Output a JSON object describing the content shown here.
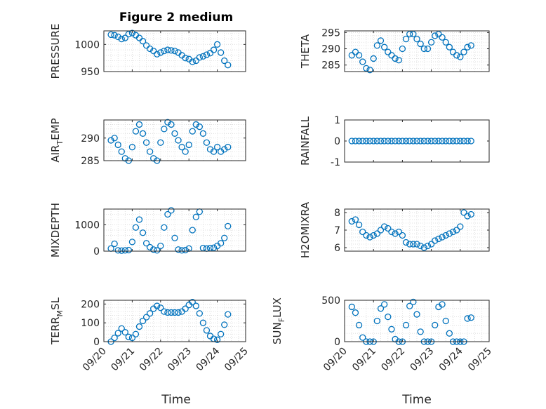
{
  "figure_title": "Figure 2 medium",
  "colors": {
    "marker": "#0072BD",
    "axis": "#262626",
    "grid": "#d9d9d9"
  },
  "chart_data": [
    {
      "type": "scatter",
      "ylabel": "PRESSURE",
      "ylabel_sub": "",
      "ylabel_after": "",
      "xlim": [
        "09/20",
        "09/25"
      ],
      "ylim": [
        950,
        1025
      ],
      "yticks": [
        950,
        1000
      ],
      "yticklabels": [
        "950",
        "1000"
      ],
      "x": [
        "09/20 06:00",
        "09/20 09:00",
        "09/20 12:00",
        "09/20 15:00",
        "09/20 18:00",
        "09/20 21:00",
        "09/21 00:00",
        "09/21 03:00",
        "09/21 06:00",
        "09/21 09:00",
        "09/21 12:00",
        "09/21 15:00",
        "09/21 18:00",
        "09/21 21:00",
        "09/22 00:00",
        "09/22 03:00",
        "09/22 06:00",
        "09/22 09:00",
        "09/22 12:00",
        "09/22 15:00",
        "09/22 18:00",
        "09/22 21:00",
        "09/23 00:00",
        "09/23 03:00",
        "09/23 06:00",
        "09/23 09:00",
        "09/23 12:00",
        "09/23 15:00",
        "09/23 18:00",
        "09/23 21:00",
        "09/24 00:00",
        "09/24 03:00",
        "09/24 06:00",
        "09/24 09:00"
      ],
      "y": [
        1018,
        1017,
        1014,
        1010,
        1012,
        1019,
        1021,
        1017,
        1012,
        1006,
        998,
        992,
        988,
        982,
        985,
        988,
        990,
        989,
        988,
        985,
        980,
        975,
        973,
        968,
        970,
        976,
        978,
        981,
        984,
        990,
        1000,
        985,
        970,
        962
      ],
      "grid": true
    },
    {
      "type": "scatter",
      "ylabel": "THETA",
      "ylabel_sub": "",
      "ylabel_after": "",
      "xlim": [
        "09/20",
        "09/25"
      ],
      "ylim": [
        283,
        295.5
      ],
      "yticks": [
        285,
        290,
        295
      ],
      "yticklabels": [
        "285",
        "290",
        "295"
      ],
      "x": [
        "09/20 06:00",
        "09/20 09:00",
        "09/20 12:00",
        "09/20 15:00",
        "09/20 18:00",
        "09/20 21:00",
        "09/21 00:00",
        "09/21 03:00",
        "09/21 06:00",
        "09/21 09:00",
        "09/21 12:00",
        "09/21 15:00",
        "09/21 18:00",
        "09/21 21:00",
        "09/22 00:00",
        "09/22 03:00",
        "09/22 06:00",
        "09/22 09:00",
        "09/22 12:00",
        "09/22 15:00",
        "09/22 18:00",
        "09/22 21:00",
        "09/23 00:00",
        "09/23 03:00",
        "09/23 06:00",
        "09/23 09:00",
        "09/23 12:00",
        "09/23 15:00",
        "09/23 18:00",
        "09/23 21:00",
        "09/24 00:00",
        "09/24 03:00",
        "09/24 06:00",
        "09/24 09:00"
      ],
      "y": [
        288,
        289,
        288,
        286,
        284,
        283.5,
        287,
        291,
        292.5,
        290.5,
        289,
        288,
        287,
        286.5,
        290,
        293,
        294.5,
        294.5,
        293,
        291.5,
        290,
        290,
        292,
        294,
        294.5,
        293.5,
        292,
        290.5,
        289,
        288,
        287.5,
        289,
        290.5,
        291
      ],
      "grid": true
    },
    {
      "type": "scatter",
      "ylabel": "AIR",
      "ylabel_sub": "T",
      "ylabel_after": "EMP",
      "xlim": [
        "09/20",
        "09/25"
      ],
      "ylim": [
        285,
        294
      ],
      "yticks": [
        285,
        290
      ],
      "yticklabels": [
        "285",
        "290"
      ],
      "x": [
        "09/20 06:00",
        "09/20 09:00",
        "09/20 12:00",
        "09/20 15:00",
        "09/20 18:00",
        "09/20 21:00",
        "09/21 00:00",
        "09/21 03:00",
        "09/21 06:00",
        "09/21 09:00",
        "09/21 12:00",
        "09/21 15:00",
        "09/21 18:00",
        "09/21 21:00",
        "09/22 00:00",
        "09/22 03:00",
        "09/22 06:00",
        "09/22 09:00",
        "09/22 12:00",
        "09/22 15:00",
        "09/22 18:00",
        "09/22 21:00",
        "09/23 00:00",
        "09/23 03:00",
        "09/23 06:00",
        "09/23 09:00",
        "09/23 12:00",
        "09/23 15:00",
        "09/23 18:00",
        "09/23 21:00",
        "09/24 00:00",
        "09/24 03:00",
        "09/24 06:00",
        "09/24 09:00"
      ],
      "y": [
        289.5,
        290,
        288.5,
        287,
        285.5,
        285,
        288,
        291.5,
        293,
        291,
        289,
        287,
        285.5,
        285,
        289,
        292,
        293.5,
        293,
        291,
        289.5,
        288,
        287,
        288.5,
        291.5,
        293,
        292.5,
        291,
        289,
        287.5,
        287,
        288,
        287,
        287.5,
        288
      ],
      "grid": true
    },
    {
      "type": "scatter",
      "ylabel": "RAINFALL",
      "ylabel_sub": "",
      "ylabel_after": "",
      "xlim": [
        "09/20",
        "09/25"
      ],
      "ylim": [
        -1,
        1
      ],
      "yticks": [
        -1,
        0,
        1
      ],
      "yticklabels": [
        "-1",
        "0",
        "1"
      ],
      "x": [
        "09/20 06:00",
        "09/20 09:00",
        "09/20 12:00",
        "09/20 15:00",
        "09/20 18:00",
        "09/20 21:00",
        "09/21 00:00",
        "09/21 03:00",
        "09/21 06:00",
        "09/21 09:00",
        "09/21 12:00",
        "09/21 15:00",
        "09/21 18:00",
        "09/21 21:00",
        "09/22 00:00",
        "09/22 03:00",
        "09/22 06:00",
        "09/22 09:00",
        "09/22 12:00",
        "09/22 15:00",
        "09/22 18:00",
        "09/22 21:00",
        "09/23 00:00",
        "09/23 03:00",
        "09/23 06:00",
        "09/23 09:00",
        "09/23 12:00",
        "09/23 15:00",
        "09/23 18:00",
        "09/23 21:00",
        "09/24 00:00",
        "09/24 03:00",
        "09/24 06:00",
        "09/24 09:00"
      ],
      "y": [
        0,
        0,
        0,
        0,
        0,
        0,
        0,
        0,
        0,
        0,
        0,
        0,
        0,
        0,
        0,
        0,
        0,
        0,
        0,
        0,
        0,
        0,
        0,
        0,
        0,
        0,
        0,
        0,
        0,
        0,
        0,
        0,
        0,
        0
      ],
      "grid": false
    },
    {
      "type": "scatter",
      "ylabel": "MIXDEPTH",
      "ylabel_sub": "",
      "ylabel_after": "",
      "xlim": [
        "09/20",
        "09/25"
      ],
      "ylim": [
        0,
        1600
      ],
      "yticks": [
        0,
        1000
      ],
      "yticklabels": [
        "0",
        "1000"
      ],
      "x": [
        "09/20 06:00",
        "09/20 09:00",
        "09/20 12:00",
        "09/20 15:00",
        "09/20 18:00",
        "09/20 21:00",
        "09/21 00:00",
        "09/21 03:00",
        "09/21 06:00",
        "09/21 09:00",
        "09/21 12:00",
        "09/21 15:00",
        "09/21 18:00",
        "09/21 21:00",
        "09/22 00:00",
        "09/22 03:00",
        "09/22 06:00",
        "09/22 09:00",
        "09/22 12:00",
        "09/22 15:00",
        "09/22 18:00",
        "09/22 21:00",
        "09/23 00:00",
        "09/23 03:00",
        "09/23 06:00",
        "09/23 09:00",
        "09/23 12:00",
        "09/23 15:00",
        "09/23 18:00",
        "09/23 21:00",
        "09/24 00:00",
        "09/24 03:00",
        "09/24 06:00",
        "09/24 09:00"
      ],
      "y": [
        100,
        280,
        30,
        20,
        30,
        40,
        350,
        900,
        1200,
        700,
        300,
        150,
        60,
        30,
        200,
        900,
        1400,
        1550,
        500,
        60,
        30,
        40,
        100,
        800,
        1300,
        1500,
        120,
        100,
        120,
        130,
        200,
        300,
        500,
        950
      ],
      "grid": true
    },
    {
      "type": "scatter",
      "ylabel": "H2OMIXRA",
      "ylabel_sub": "",
      "ylabel_after": "",
      "xlim": [
        "09/20",
        "09/25"
      ],
      "ylim": [
        5.8,
        8.2
      ],
      "yticks": [
        6,
        7,
        8
      ],
      "yticklabels": [
        "6",
        "7",
        "8"
      ],
      "x": [
        "09/20 06:00",
        "09/20 09:00",
        "09/20 12:00",
        "09/20 15:00",
        "09/20 18:00",
        "09/20 21:00",
        "09/21 00:00",
        "09/21 03:00",
        "09/21 06:00",
        "09/21 09:00",
        "09/21 12:00",
        "09/21 15:00",
        "09/21 18:00",
        "09/21 21:00",
        "09/22 00:00",
        "09/22 03:00",
        "09/22 06:00",
        "09/22 09:00",
        "09/22 12:00",
        "09/22 15:00",
        "09/22 18:00",
        "09/22 21:00",
        "09/23 00:00",
        "09/23 03:00",
        "09/23 06:00",
        "09/23 09:00",
        "09/23 12:00",
        "09/23 15:00",
        "09/23 18:00",
        "09/23 21:00",
        "09/24 00:00",
        "09/24 03:00",
        "09/24 06:00",
        "09/24 09:00"
      ],
      "y": [
        7.5,
        7.6,
        7.3,
        6.9,
        6.7,
        6.6,
        6.7,
        6.8,
        7.0,
        7.2,
        7.1,
        6.9,
        6.8,
        6.9,
        6.7,
        6.3,
        6.2,
        6.2,
        6.2,
        6.1,
        6.0,
        6.1,
        6.2,
        6.4,
        6.5,
        6.6,
        6.7,
        6.8,
        6.9,
        7.0,
        7.2,
        8.0,
        7.8,
        7.9
      ],
      "grid": true
    },
    {
      "type": "scatter",
      "ylabel": "TERR",
      "ylabel_sub": "M",
      "ylabel_after": "SL",
      "xlim": [
        "09/20",
        "09/25"
      ],
      "ylim": [
        0,
        220
      ],
      "yticks": [
        0,
        100,
        200
      ],
      "yticklabels": [
        "0",
        "100",
        "200"
      ],
      "x": [
        "09/20 06:00",
        "09/20 09:00",
        "09/20 12:00",
        "09/20 15:00",
        "09/20 18:00",
        "09/20 21:00",
        "09/21 00:00",
        "09/21 03:00",
        "09/21 06:00",
        "09/21 09:00",
        "09/21 12:00",
        "09/21 15:00",
        "09/21 18:00",
        "09/21 21:00",
        "09/22 00:00",
        "09/22 03:00",
        "09/22 06:00",
        "09/22 09:00",
        "09/22 12:00",
        "09/22 15:00",
        "09/22 18:00",
        "09/22 21:00",
        "09/23 00:00",
        "09/23 03:00",
        "09/23 06:00",
        "09/23 09:00",
        "09/23 12:00",
        "09/23 15:00",
        "09/23 18:00",
        "09/23 21:00",
        "09/24 00:00",
        "09/24 03:00",
        "09/24 06:00",
        "09/24 09:00"
      ],
      "y": [
        0,
        20,
        45,
        70,
        50,
        25,
        20,
        40,
        80,
        110,
        130,
        150,
        175,
        190,
        180,
        160,
        155,
        155,
        155,
        155,
        160,
        175,
        195,
        210,
        190,
        150,
        100,
        60,
        30,
        15,
        10,
        40,
        90,
        145
      ],
      "grid": true
    },
    {
      "type": "scatter",
      "ylabel": "SUN",
      "ylabel_sub": "F",
      "ylabel_after": "LUX",
      "xlim": [
        "09/20",
        "09/25"
      ],
      "ylim": [
        0,
        500
      ],
      "yticks": [
        0,
        500
      ],
      "yticklabels": [
        "0",
        "500"
      ],
      "x": [
        "09/20 06:00",
        "09/20 09:00",
        "09/20 12:00",
        "09/20 15:00",
        "09/20 18:00",
        "09/20 21:00",
        "09/21 00:00",
        "09/21 03:00",
        "09/21 06:00",
        "09/21 09:00",
        "09/21 12:00",
        "09/21 15:00",
        "09/21 18:00",
        "09/21 21:00",
        "09/22 00:00",
        "09/22 03:00",
        "09/22 06:00",
        "09/22 09:00",
        "09/22 12:00",
        "09/22 15:00",
        "09/22 18:00",
        "09/22 21:00",
        "09/23 00:00",
        "09/23 03:00",
        "09/23 06:00",
        "09/23 09:00",
        "09/23 12:00",
        "09/23 15:00",
        "09/23 18:00",
        "09/23 21:00",
        "09/24 00:00",
        "09/24 03:00",
        "09/24 06:00",
        "09/24 09:00"
      ],
      "y": [
        420,
        350,
        200,
        50,
        0,
        0,
        0,
        250,
        400,
        450,
        300,
        150,
        30,
        0,
        0,
        200,
        430,
        480,
        330,
        120,
        0,
        0,
        0,
        200,
        420,
        450,
        250,
        100,
        0,
        0,
        0,
        0,
        280,
        290
      ],
      "grid": true
    }
  ],
  "xticklabels": [
    "09/20",
    "09/21",
    "09/22",
    "09/23",
    "09/24",
    "09/25"
  ],
  "xlabel": "Time"
}
